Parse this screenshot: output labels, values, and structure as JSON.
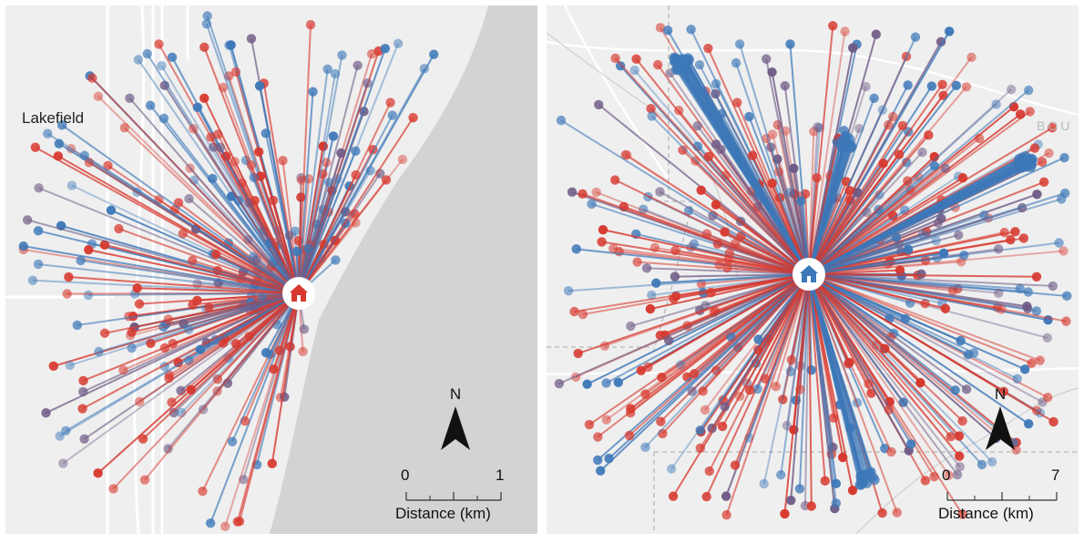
{
  "left_panel": {
    "place_label": "Lakefield",
    "facility_icon_color": "#d7392f",
    "north_label": "N",
    "scale": {
      "min_label": "0",
      "max_label": "1",
      "title": "Distance (km)"
    },
    "water_color": "#d2d3d4"
  },
  "right_panel": {
    "place_label": "BOU",
    "facility_icon_color": "#3d78b8",
    "north_label": "N",
    "scale": {
      "min_label": "0",
      "max_label": "7",
      "title": "Distance (km)"
    }
  },
  "colors": {
    "red": "#d7392f",
    "blue": "#3d78b8",
    "purple": "#6e5a85",
    "background": "#efefef"
  }
}
